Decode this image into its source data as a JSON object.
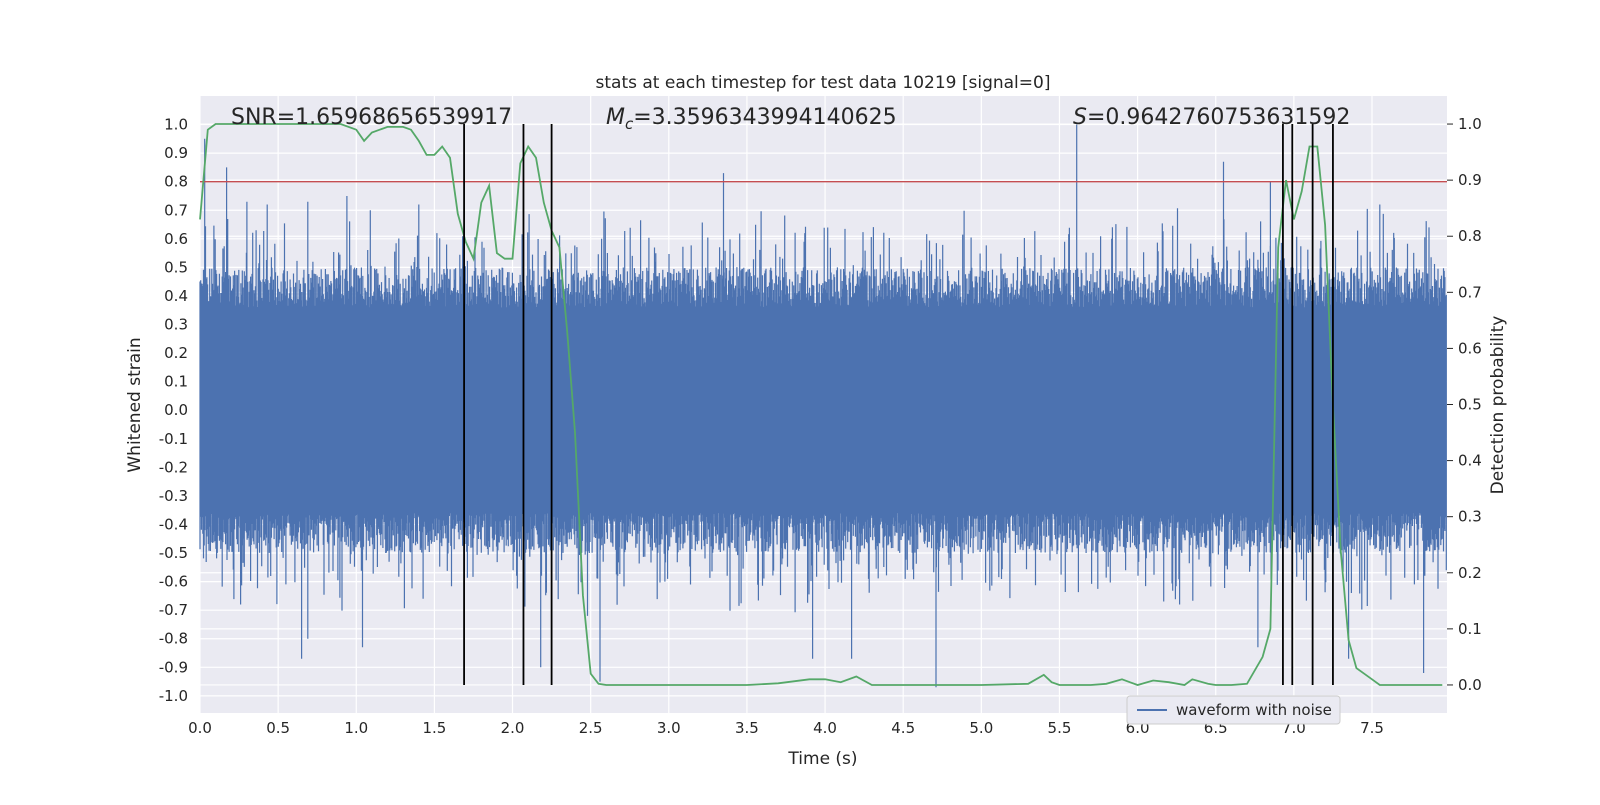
{
  "chart_data": {
    "type": "line",
    "title": "stats at each timestep for test data 10219 [signal=0]",
    "xlabel": "Time (s)",
    "ylabel_left": "Whitened strain",
    "ylabel_right": "Detection probability",
    "xlim": [
      0.0,
      7.98
    ],
    "ylim_left": [
      -1.06,
      1.1
    ],
    "ylim_right": [
      -0.05,
      1.05
    ],
    "x_ticks": [
      "0.0",
      "0.5",
      "1.0",
      "1.5",
      "2.0",
      "2.5",
      "3.0",
      "3.5",
      "4.0",
      "4.5",
      "5.0",
      "5.5",
      "6.0",
      "6.5",
      "7.0",
      "7.5"
    ],
    "y_ticks_left": [
      "1.0",
      "0.9",
      "0.8",
      "0.7",
      "0.6",
      "0.5",
      "0.4",
      "0.3",
      "0.2",
      "0.1",
      "0.0",
      "-0.1",
      "-0.2",
      "-0.3",
      "-0.4",
      "-0.5",
      "-0.6",
      "-0.7",
      "-0.8",
      "-0.9",
      "-1.0"
    ],
    "y_ticks_right": [
      "1.0",
      "0.9",
      "0.8",
      "0.7",
      "0.6",
      "0.5",
      "0.4",
      "0.3",
      "0.2",
      "0.1",
      "0.0"
    ],
    "grid": true,
    "legend_position": "bottom-right",
    "annotations": {
      "snr": "SNR=1.65968656539917",
      "mc_symbol": "M",
      "mc_sub": "c",
      "mc_value": "=3.3596343994140625",
      "s_symbol": "S",
      "s_value": "=0.9642760753631592"
    },
    "threshold": {
      "value": 0.8,
      "axis": "left",
      "color": "#c44e52"
    },
    "vertical_markers": [
      1.69,
      2.07,
      2.25,
      6.93,
      6.99,
      7.12,
      7.25
    ],
    "series": [
      {
        "name": "waveform with noise",
        "axis": "left",
        "color": "#4c72b0",
        "note_type": "noise band",
        "envelope_upper": 0.5,
        "envelope_lower": -0.5,
        "peak_times": [
          0.03,
          0.17,
          0.3,
          0.43,
          0.69,
          0.94,
          1.09,
          1.4,
          2.57,
          3.35,
          5.61,
          6.55,
          6.85,
          7.55
        ],
        "peak_values": [
          0.95,
          0.85,
          0.73,
          0.72,
          0.73,
          0.75,
          0.7,
          0.72,
          0.6,
          0.83,
          1.0,
          0.87,
          0.8,
          0.72
        ],
        "trough_times": [
          0.26,
          0.65,
          0.69,
          1.04,
          2.18,
          2.48,
          2.56,
          3.92,
          4.17,
          4.71,
          6.77,
          7.35,
          7.83
        ],
        "trough_values": [
          -0.68,
          -0.87,
          -0.8,
          -0.83,
          -0.9,
          -0.72,
          -0.95,
          -0.87,
          -0.87,
          -0.97,
          -0.83,
          -0.87,
          -0.92
        ]
      },
      {
        "name": "",
        "axis": "right",
        "color": "#55a868",
        "x": [
          0.0,
          0.05,
          0.1,
          0.2,
          0.3,
          0.4,
          0.5,
          0.6,
          0.7,
          0.8,
          0.9,
          1.0,
          1.05,
          1.1,
          1.15,
          1.2,
          1.3,
          1.35,
          1.4,
          1.45,
          1.5,
          1.55,
          1.6,
          1.65,
          1.7,
          1.75,
          1.8,
          1.85,
          1.9,
          1.95,
          2.0,
          2.05,
          2.1,
          2.15,
          2.2,
          2.25,
          2.3,
          2.35,
          2.4,
          2.45,
          2.5,
          2.55,
          2.6,
          2.7,
          2.8,
          3.0,
          3.2,
          3.5,
          3.7,
          3.9,
          4.0,
          4.1,
          4.2,
          4.3,
          4.5,
          4.7,
          5.0,
          5.3,
          5.4,
          5.45,
          5.5,
          5.6,
          5.7,
          5.8,
          5.9,
          5.95,
          6.0,
          6.1,
          6.2,
          6.3,
          6.35,
          6.45,
          6.5,
          6.6,
          6.7,
          6.8,
          6.85,
          6.9,
          6.95,
          7.0,
          7.05,
          7.1,
          7.15,
          7.2,
          7.25,
          7.3,
          7.35,
          7.4,
          7.45,
          7.5,
          7.55,
          7.6,
          7.7,
          7.8,
          7.95
        ],
        "y": [
          0.83,
          0.99,
          1.0,
          1.0,
          1.0,
          1.0,
          1.0,
          1.0,
          1.0,
          1.0,
          1.0,
          0.99,
          0.97,
          0.985,
          0.99,
          0.995,
          0.995,
          0.99,
          0.97,
          0.945,
          0.945,
          0.96,
          0.94,
          0.84,
          0.79,
          0.76,
          0.86,
          0.89,
          0.77,
          0.76,
          0.76,
          0.93,
          0.96,
          0.94,
          0.86,
          0.81,
          0.78,
          0.63,
          0.45,
          0.16,
          0.02,
          0.002,
          0.0,
          0.0,
          0.0,
          0.0,
          0.0,
          0.0,
          0.003,
          0.01,
          0.01,
          0.005,
          0.015,
          0.0,
          0.0,
          0.0,
          0.0,
          0.002,
          0.018,
          0.005,
          0.0,
          0.0,
          0.0,
          0.002,
          0.01,
          0.005,
          0.0,
          0.008,
          0.005,
          0.0,
          0.01,
          0.002,
          0.0,
          0.0,
          0.002,
          0.05,
          0.1,
          0.78,
          0.9,
          0.83,
          0.88,
          0.96,
          0.96,
          0.82,
          0.5,
          0.24,
          0.08,
          0.03,
          0.02,
          0.01,
          0.0,
          0.0,
          0.0,
          0.0,
          0.0
        ]
      }
    ]
  }
}
